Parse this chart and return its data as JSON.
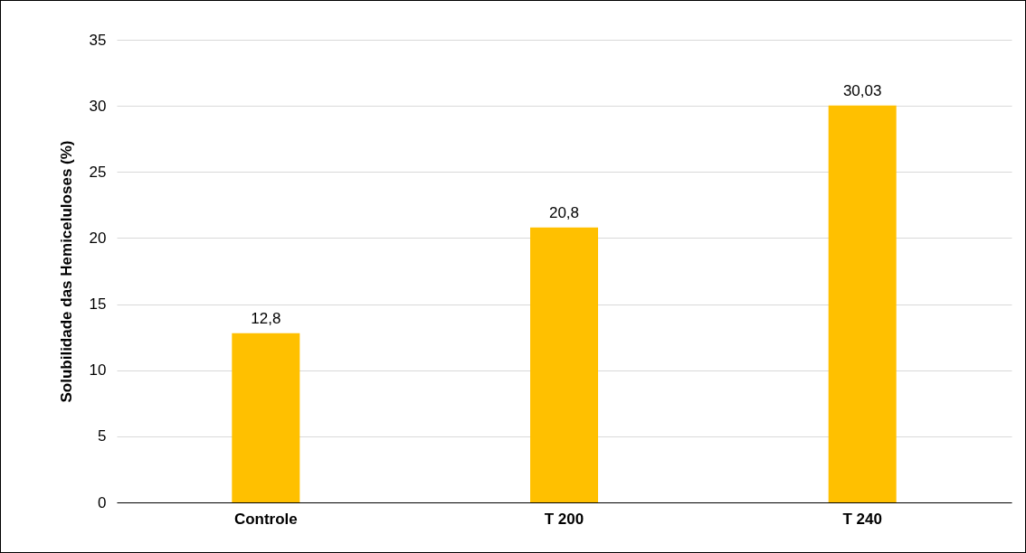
{
  "chart_data": {
    "type": "bar",
    "ylabel": "Solubilidade das Hemiceluloses (%)",
    "categories": [
      "Controle",
      "T 200",
      "T 240"
    ],
    "values": [
      12.8,
      20.8,
      30.03
    ],
    "value_labels": [
      "12,8",
      "20,8",
      "30,03"
    ],
    "color": "#ffc000",
    "ylim": [
      0,
      35
    ],
    "yticks": [
      0,
      5,
      10,
      15,
      20,
      25,
      30,
      35
    ],
    "grid": "y"
  }
}
